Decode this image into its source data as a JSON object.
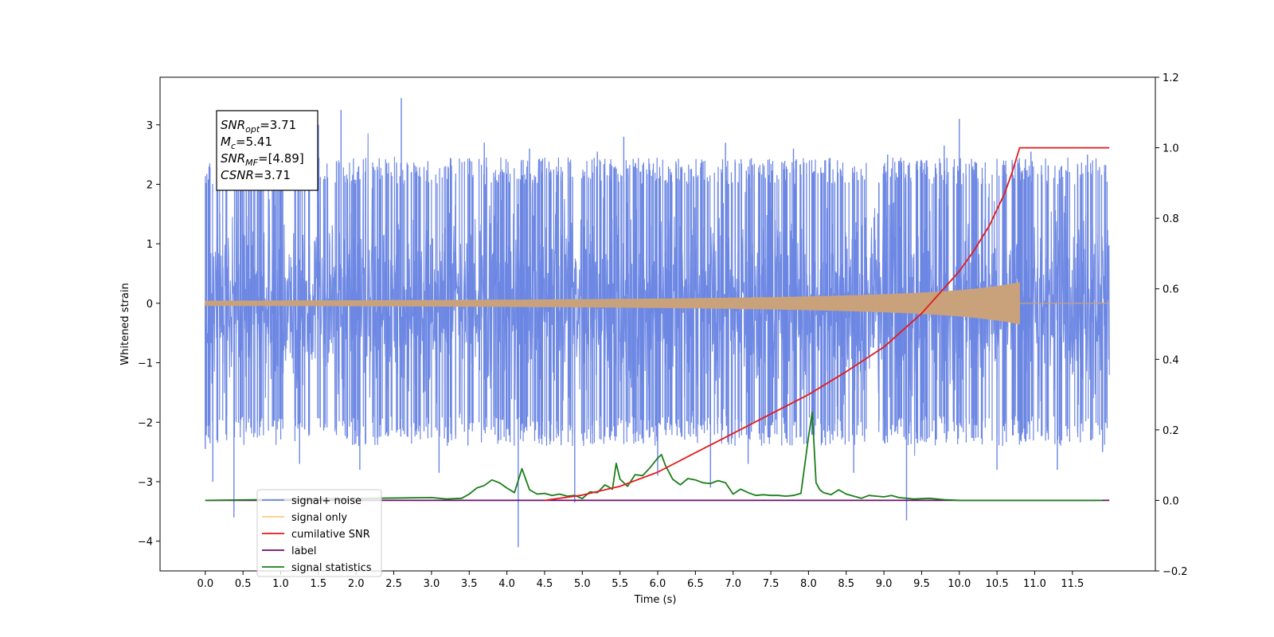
{
  "chart_data": {
    "type": "line",
    "xlabel": "Time (s)",
    "ylabel": "Whitened strain",
    "ylabel_right": "",
    "xlim": [
      -0.6,
      12.6
    ],
    "ylim": [
      -4.5,
      3.8
    ],
    "ylim_right": [
      -0.2,
      1.2
    ],
    "x_ticks": [
      0.0,
      0.5,
      1.0,
      1.5,
      2.0,
      2.5,
      3.0,
      3.5,
      4.0,
      4.5,
      5.0,
      5.5,
      6.0,
      6.5,
      7.0,
      7.5,
      8.0,
      8.5,
      9.0,
      9.5,
      10.0,
      10.5,
      11.0,
      11.5
    ],
    "x_tick_labels": [
      "0.0",
      "0.5",
      "1.0",
      "1.5",
      "2.0",
      "2.5",
      "3.0",
      "3.5",
      "4.0",
      "4.5",
      "5.0",
      "5.5",
      "6.0",
      "6.5",
      "7.0",
      "7.5",
      "8.0",
      "8.5",
      "9.0",
      "9.5",
      "10.0",
      "10.5",
      "11.0",
      "11.5"
    ],
    "y_ticks": [
      -4,
      -3,
      -2,
      -1,
      0,
      1,
      2,
      3
    ],
    "y_tick_labels": [
      "−4",
      "−3",
      "−2",
      "−1",
      "0",
      "1",
      "2",
      "3"
    ],
    "y_right_ticks": [
      -0.2,
      0.0,
      0.2,
      0.4,
      0.6,
      0.8,
      1.0,
      1.2
    ],
    "y_right_tick_labels": [
      "−0.2",
      "0.0",
      "0.2",
      "0.4",
      "0.6",
      "0.8",
      "1.0",
      "1.2"
    ],
    "annotation": {
      "lines": [
        {
          "base": "SNR",
          "sub": "opt",
          "value": "=3.71"
        },
        {
          "base": "M",
          "sub": "c",
          "value": "=5.41"
        },
        {
          "base": "SNR",
          "sub": "MF",
          "value": "=[4.89]"
        },
        {
          "base": "CSNR",
          "sub": "",
          "value": "=3.71"
        }
      ]
    },
    "series": [
      {
        "name": "signal+ noise",
        "axis": "left",
        "color": "#6b86e3",
        "kind": "noise_band",
        "x_range": [
          0.0,
          11.99
        ],
        "typical_envelope": [
          -1.9,
          2.0
        ],
        "spikes": [
          {
            "x": 0.0,
            "y": -2.45
          },
          {
            "x": 0.1,
            "y": -3.0
          },
          {
            "x": 0.38,
            "y": -3.6
          },
          {
            "x": 0.7,
            "y": 2.55
          },
          {
            "x": 1.25,
            "y": -2.7
          },
          {
            "x": 1.5,
            "y": 3.0
          },
          {
            "x": 1.8,
            "y": 3.25
          },
          {
            "x": 2.05,
            "y": -2.8
          },
          {
            "x": 2.6,
            "y": 3.45
          },
          {
            "x": 3.1,
            "y": -2.85
          },
          {
            "x": 3.7,
            "y": 2.7
          },
          {
            "x": 4.15,
            "y": -4.1
          },
          {
            "x": 4.3,
            "y": 2.6
          },
          {
            "x": 4.9,
            "y": -3.35
          },
          {
            "x": 5.2,
            "y": 2.55
          },
          {
            "x": 5.55,
            "y": 2.8
          },
          {
            "x": 6.0,
            "y": -2.9
          },
          {
            "x": 6.7,
            "y": -3.1
          },
          {
            "x": 6.9,
            "y": 2.7
          },
          {
            "x": 7.2,
            "y": -2.7
          },
          {
            "x": 7.8,
            "y": 2.6
          },
          {
            "x": 8.6,
            "y": -2.85
          },
          {
            "x": 9.05,
            "y": 2.5
          },
          {
            "x": 9.3,
            "y": -3.65
          },
          {
            "x": 9.8,
            "y": 2.65
          },
          {
            "x": 10.0,
            "y": 3.1
          },
          {
            "x": 10.5,
            "y": -2.8
          },
          {
            "x": 10.95,
            "y": 2.55
          },
          {
            "x": 11.3,
            "y": -2.8
          },
          {
            "x": 11.7,
            "y": 2.5
          },
          {
            "x": 11.9,
            "y": -2.5
          }
        ]
      },
      {
        "name": "signal only",
        "axis": "left",
        "color": "#c9a27b",
        "kind": "chirp",
        "x_range": [
          0.0,
          10.8
        ],
        "peak_amplitude": 0.35
      },
      {
        "name": "cumilative SNR",
        "axis": "right",
        "color": "#e41a1c",
        "x": [
          4.5,
          5.0,
          5.5,
          6.0,
          6.5,
          7.0,
          7.5,
          8.0,
          8.5,
          9.0,
          9.5,
          10.0,
          10.2,
          10.4,
          10.6,
          10.7,
          10.8,
          11.0,
          11.5,
          11.99
        ],
        "y": [
          0.0,
          0.015,
          0.04,
          0.08,
          0.135,
          0.19,
          0.245,
          0.3,
          0.365,
          0.435,
          0.53,
          0.65,
          0.71,
          0.78,
          0.87,
          0.93,
          1.0,
          1.0,
          1.0,
          1.0
        ]
      },
      {
        "name": "label",
        "axis": "right",
        "color": "#6a0d6a",
        "x": [
          0.0,
          11.99
        ],
        "y": [
          0.0,
          0.0
        ]
      },
      {
        "name": "signal statistics",
        "axis": "right",
        "color": "#1a7f1a",
        "x": [
          0.0,
          3.0,
          3.2,
          3.4,
          3.5,
          3.6,
          3.7,
          3.8,
          3.9,
          4.0,
          4.1,
          4.2,
          4.3,
          4.4,
          4.5,
          4.6,
          4.7,
          4.8,
          4.9,
          5.0,
          5.1,
          5.2,
          5.3,
          5.4,
          5.45,
          5.5,
          5.6,
          5.7,
          5.8,
          5.9,
          6.0,
          6.05,
          6.1,
          6.2,
          6.3,
          6.4,
          6.5,
          6.6,
          6.7,
          6.8,
          6.9,
          7.0,
          7.1,
          7.2,
          7.3,
          7.4,
          7.5,
          7.6,
          7.7,
          7.8,
          7.9,
          8.0,
          8.05,
          8.1,
          8.15,
          8.2,
          8.3,
          8.4,
          8.5,
          8.6,
          8.7,
          8.8,
          8.9,
          9.0,
          9.1,
          9.2,
          9.4,
          9.6,
          9.8,
          10.0,
          11.9
        ],
        "y": [
          0.0,
          0.008,
          0.004,
          0.006,
          0.018,
          0.035,
          0.042,
          0.058,
          0.05,
          0.035,
          0.022,
          0.09,
          0.03,
          0.018,
          0.02,
          0.014,
          0.018,
          0.012,
          0.014,
          0.005,
          0.024,
          0.022,
          0.044,
          0.032,
          0.105,
          0.06,
          0.04,
          0.073,
          0.07,
          0.093,
          0.12,
          0.13,
          0.1,
          0.06,
          0.044,
          0.062,
          0.058,
          0.05,
          0.048,
          0.056,
          0.05,
          0.018,
          0.032,
          0.022,
          0.014,
          0.016,
          0.014,
          0.014,
          0.012,
          0.014,
          0.02,
          0.18,
          0.25,
          0.05,
          0.03,
          0.022,
          0.016,
          0.03,
          0.018,
          0.012,
          0.006,
          0.014,
          0.012,
          0.01,
          0.014,
          0.008,
          0.004,
          0.006,
          0.002,
          0.0,
          0.0
        ]
      }
    ],
    "legend": {
      "position": "lower-left",
      "entries": [
        {
          "label": "signal+ noise",
          "color": "#6b86e3"
        },
        {
          "label": "signal only",
          "color": "#ffcc80"
        },
        {
          "label": "cumilative SNR",
          "color": "#e41a1c"
        },
        {
          "label": "label",
          "color": "#6a0d6a"
        },
        {
          "label": "signal statistics",
          "color": "#1a7f1a"
        }
      ]
    }
  }
}
